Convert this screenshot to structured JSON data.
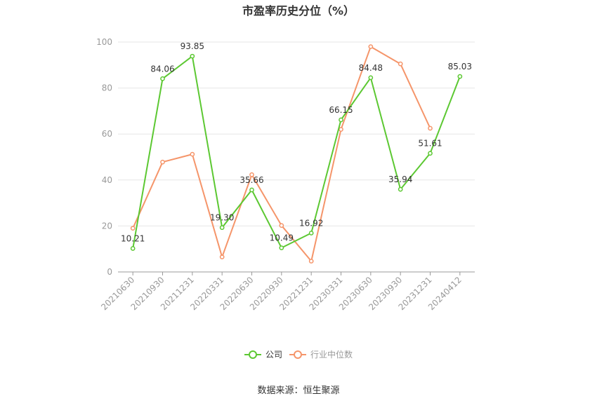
{
  "source_text": "数据来源：恒生聚源",
  "chart_data": {
    "type": "line",
    "title": "市盈率历史分位（%）",
    "xlabel": "",
    "ylabel": "",
    "ylim": [
      0,
      100
    ],
    "yticks": [
      0,
      20,
      40,
      60,
      80,
      100
    ],
    "grid": true,
    "legend_position": "bottom",
    "categories": [
      "20210630",
      "20210930",
      "20211231",
      "20220331",
      "20220630",
      "20220930",
      "20221231",
      "20230331",
      "20230630",
      "20230930",
      "20231231",
      "20240412"
    ],
    "series": [
      {
        "name": "公司",
        "color": "#5cc832",
        "values": [
          10.21,
          84.06,
          93.85,
          19.3,
          35.66,
          10.49,
          16.92,
          66.15,
          84.48,
          35.94,
          51.61,
          85.03
        ],
        "labels": [
          "10.21",
          "84.06",
          "93.85",
          "19.30",
          "35.66",
          "10.49",
          "16.92",
          "66.15",
          "84.48",
          "35.94",
          "51.61",
          "85.03"
        ]
      },
      {
        "name": "行业中位数",
        "color": "#f5956a",
        "values": [
          19.0,
          47.8,
          51.2,
          6.5,
          42.3,
          20.2,
          4.7,
          62.0,
          98.0,
          90.5,
          62.5,
          null
        ]
      }
    ]
  }
}
